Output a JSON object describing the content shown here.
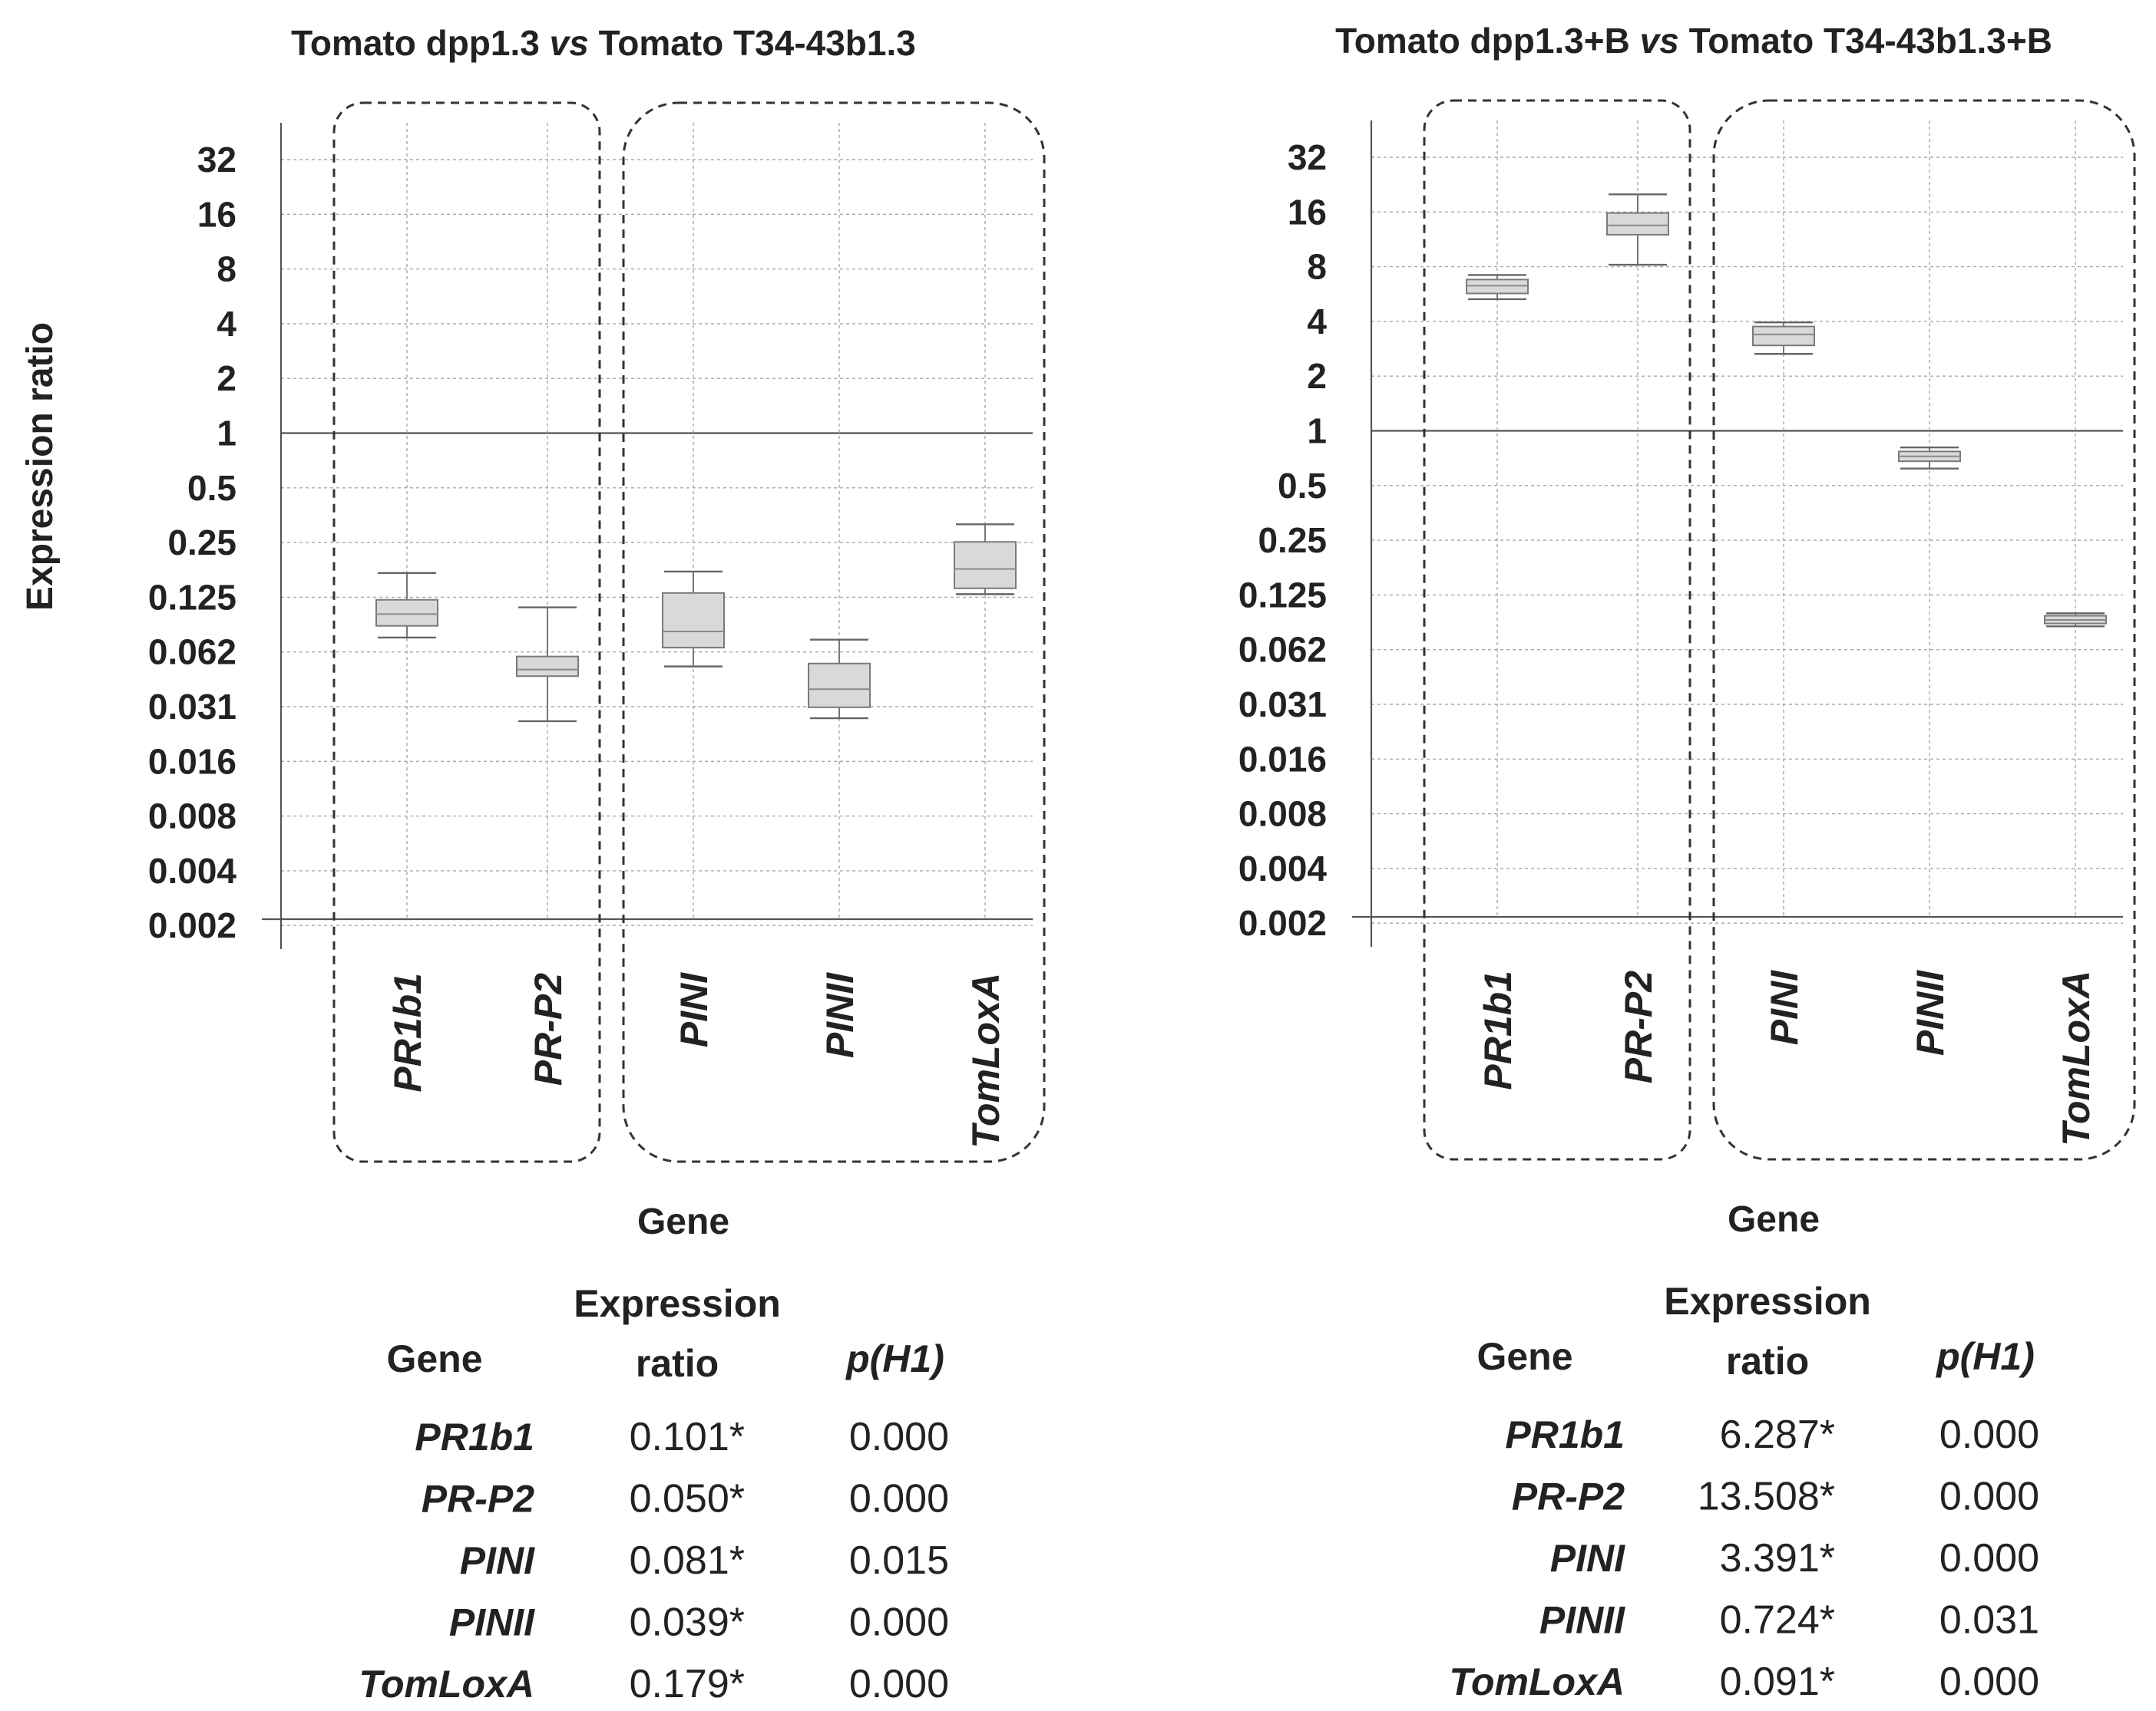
{
  "chart_data": [
    {
      "type": "box",
      "title": {
        "a": "Tomato dpp1.3 ",
        "vs": "vs",
        "b": " Tomato T34-43b1.3"
      },
      "ylabel": "Expression ratio",
      "xlabel": "Gene",
      "yscale": "log2",
      "yticks": [
        "32",
        "16",
        "8",
        "4",
        "2",
        "1",
        "0.5",
        "0.25",
        "0.125",
        "0.062",
        "0.031",
        "0.016",
        "0.008",
        "0.004",
        "0.002"
      ],
      "categories": [
        "PR1b1",
        "PR-P2",
        "PINI",
        "PINII",
        "TomLoxA"
      ],
      "groups": [
        [
          "PR1b1",
          "PR-P2"
        ],
        [
          "PINI",
          "PINII",
          "TomLoxA"
        ]
      ],
      "boxes": [
        {
          "min": 0.075,
          "q1": 0.087,
          "median": 0.101,
          "q3": 0.121,
          "max": 0.17
        },
        {
          "min": 0.026,
          "q1": 0.046,
          "median": 0.05,
          "q3": 0.059,
          "max": 0.11
        },
        {
          "min": 0.052,
          "q1": 0.066,
          "median": 0.081,
          "q3": 0.132,
          "max": 0.173
        },
        {
          "min": 0.027,
          "q1": 0.031,
          "median": 0.039,
          "q3": 0.054,
          "max": 0.073
        },
        {
          "min": 0.13,
          "q1": 0.14,
          "median": 0.179,
          "q3": 0.252,
          "max": 0.315
        }
      ],
      "table": {
        "headers": {
          "gene": "Gene",
          "ratio1": "Expression",
          "ratio2": "ratio",
          "p": "p(H1)"
        },
        "rows": [
          {
            "gene": "PR1b1",
            "ratio": "0.101*",
            "p": "0.000"
          },
          {
            "gene": "PR-P2",
            "ratio": "0.050*",
            "p": "0.000"
          },
          {
            "gene": "PINI",
            "ratio": "0.081*",
            "p": "0.015"
          },
          {
            "gene": "PINII",
            "ratio": "0.039*",
            "p": "0.000"
          },
          {
            "gene": "TomLoxA",
            "ratio": "0.179*",
            "p": "0.000"
          }
        ]
      }
    },
    {
      "type": "box",
      "title": {
        "a": "Tomato dpp1.3+B ",
        "vs": "vs",
        "b": " Tomato T34-43b1.3+B"
      },
      "ylabel": "",
      "xlabel": "Gene",
      "yscale": "log2",
      "yticks": [
        "32",
        "16",
        "8",
        "4",
        "2",
        "1",
        "0.5",
        "0.25",
        "0.125",
        "0.062",
        "0.031",
        "0.016",
        "0.008",
        "0.004",
        "0.002"
      ],
      "categories": [
        "PR1b1",
        "PR-P2",
        "PINI",
        "PINII",
        "TomLoxA"
      ],
      "groups": [
        [
          "PR1b1",
          "PR-P2"
        ],
        [
          "PINI",
          "PINII",
          "TomLoxA"
        ]
      ],
      "boxes": [
        {
          "min": 5.3,
          "q1": 5.7,
          "median": 6.287,
          "q3": 6.8,
          "max": 7.2
        },
        {
          "min": 8.2,
          "q1": 12.0,
          "median": 13.508,
          "q3": 15.8,
          "max": 20.0
        },
        {
          "min": 2.65,
          "q1": 2.95,
          "median": 3.391,
          "q3": 3.75,
          "max": 3.95
        },
        {
          "min": 0.62,
          "q1": 0.68,
          "median": 0.724,
          "q3": 0.77,
          "max": 0.81
        },
        {
          "min": 0.084,
          "q1": 0.087,
          "median": 0.091,
          "q3": 0.096,
          "max": 0.099
        }
      ],
      "table": {
        "headers": {
          "gene": "Gene",
          "ratio1": "Expression",
          "ratio2": "ratio",
          "p": "p(H1)"
        },
        "rows": [
          {
            "gene": "PR1b1",
            "ratio": "6.287*",
            "p": "0.000"
          },
          {
            "gene": "PR-P2",
            "ratio": "13.508*",
            "p": "0.000"
          },
          {
            "gene": "PINI",
            "ratio": "3.391*",
            "p": "0.000"
          },
          {
            "gene": "PINII",
            "ratio": "0.724*",
            "p": "0.031"
          },
          {
            "gene": "TomLoxA",
            "ratio": "0.091*",
            "p": "0.000"
          }
        ]
      }
    }
  ]
}
